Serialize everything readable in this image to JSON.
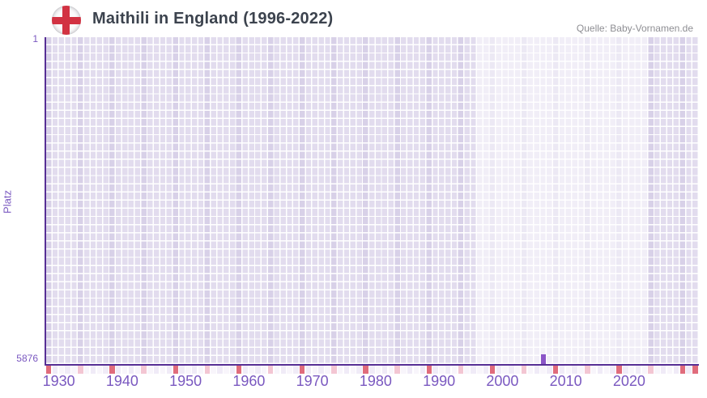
{
  "header": {
    "title": "Maithili in England (1996-2022)",
    "source": "Quelle: Baby-Vornamen.de",
    "flag_icon": "england-flag-icon"
  },
  "chart_data": {
    "type": "scatter",
    "title": "Maithili in England (1996-2022)",
    "ylabel": "Platz",
    "xlabel": "",
    "grid": true,
    "legend": null,
    "y_axis": {
      "top_label": "1",
      "bottom_label": "5876",
      "min": 1,
      "max": 5876,
      "inverted": true
    },
    "x_axis": {
      "start_year": 1928,
      "end_year": 2030,
      "tick_years": [
        1930,
        1940,
        1950,
        1960,
        1970,
        1980,
        1990,
        2000,
        2010,
        2020
      ]
    },
    "data_period": {
      "start": 1996,
      "end": 2022
    },
    "points": [
      {
        "year": 2006,
        "rank": 5876
      }
    ],
    "timeline_markers": {
      "decade_rule": "years ending in 8 plus final year",
      "half_decade_rule": "years ending in 3"
    },
    "colors": {
      "axis": "#572f95",
      "tick_label": "#7a58c0",
      "point": "#8b55c7",
      "cell_dark_region": "#e2dcee",
      "grid_line": "#ffffff",
      "decade_marker": "#e06c7c",
      "half_decade_marker": "#f3c6d3",
      "marker_cell_a": "#f0ebf7",
      "marker_cell_b": "#f8f5fb",
      "title_color": "#3c434e",
      "source_color": "#8e8e93",
      "flag_red": "#d23242"
    }
  }
}
